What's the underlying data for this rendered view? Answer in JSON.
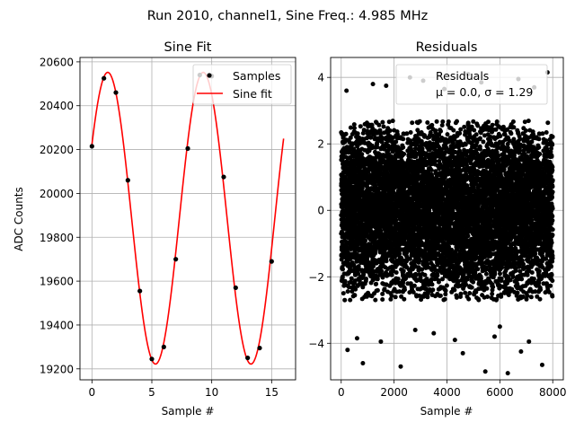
{
  "suptitle": "Run 2010, channel1, Sine Freq.: 4.985 MHz",
  "chart_data": [
    {
      "type": "scatter",
      "title": "Sine Fit",
      "xlabel": "Sample #",
      "ylabel": "ADC Counts",
      "xlim": [
        -1,
        17
      ],
      "ylim": [
        19150,
        20620
      ],
      "xticks": [
        0,
        5,
        10,
        15
      ],
      "yticks": [
        19200,
        19400,
        19600,
        19800,
        20000,
        20200,
        20400,
        20600
      ],
      "grid": true,
      "legend_position": "top-right",
      "series": [
        {
          "name": "Samples",
          "kind": "scatter",
          "color": "#000000",
          "x": [
            0,
            1,
            2,
            3,
            4,
            5,
            6,
            7,
            8,
            9,
            10,
            11,
            12,
            13,
            14,
            15
          ],
          "y": [
            20215,
            20525,
            20460,
            20060,
            19555,
            19245,
            19300,
            19700,
            20205,
            20540,
            20535,
            20075,
            19570,
            19250,
            19295,
            19690
          ]
        },
        {
          "name": "Sine fit",
          "kind": "line",
          "color": "#ff0000",
          "model": {
            "offset": 19887,
            "amplitude": 665,
            "period": 7.97,
            "phase_x": 1.32,
            "x_range": [
              0,
              16
            ]
          }
        }
      ]
    },
    {
      "type": "scatter",
      "title": "Residuals",
      "xlabel": "Sample #",
      "xlim": [
        -400,
        8400
      ],
      "ylim": [
        -5.1,
        4.6
      ],
      "xticks": [
        0,
        2000,
        4000,
        6000,
        8000
      ],
      "yticks": [
        -4,
        -2,
        0,
        2,
        4
      ],
      "grid": true,
      "legend_position": "top-right",
      "series": [
        {
          "name": "Residuals",
          "kind": "scatter",
          "color": "#000000",
          "points": [
            [
              2250,
              -4.7
            ],
            [
              5450,
              -4.85
            ],
            [
              6300,
              -4.9
            ],
            [
              7600,
              -4.65
            ],
            [
              820,
              -4.6
            ],
            [
              240,
              -4.2
            ],
            [
              4600,
              -4.3
            ],
            [
              6800,
              -4.25
            ],
            [
              3100,
              3.9
            ],
            [
              4800,
              4.1
            ],
            [
              7800,
              4.15
            ],
            [
              6700,
              3.95
            ],
            [
              1200,
              3.8
            ],
            [
              5300,
              3.85
            ],
            [
              200,
              3.6
            ],
            [
              7300,
              3.7
            ],
            [
              2600,
              4.0
            ],
            [
              1700,
              3.75
            ],
            [
              3900,
              3.65
            ],
            [
              4300,
              -3.9
            ],
            [
              1500,
              -3.95
            ],
            [
              5800,
              -3.8
            ],
            [
              7100,
              -3.95
            ],
            [
              3500,
              -3.7
            ],
            [
              600,
              -3.85
            ],
            [
              2800,
              -3.6
            ],
            [
              6000,
              -3.5
            ]
          ],
          "cloud": {
            "count": 8000,
            "x_range": [
              0,
              8000
            ],
            "std": 1.29,
            "clip": 2.7
          }
        }
      ],
      "annotation": {
        "lines": [
          "Residuals",
          "μ = 0.0, σ = 1.29"
        ]
      }
    }
  ]
}
